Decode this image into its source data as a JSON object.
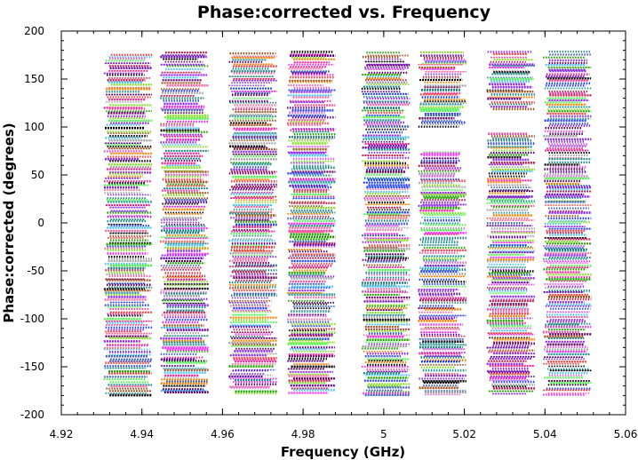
{
  "chart_data": {
    "type": "scatter",
    "title": "Phase:corrected vs. Frequency",
    "xlabel": "Frequency (GHz)",
    "ylabel": "Phase:corrected (degrees)",
    "xlim": [
      4.92,
      5.06
    ],
    "ylim": [
      -200,
      200
    ],
    "x_ticks": [
      4.92,
      4.94,
      4.96,
      4.98,
      5.0,
      5.02,
      5.04,
      5.06
    ],
    "x_tick_labels": [
      "4.92",
      "4.94",
      "4.96",
      "4.98",
      "5",
      "5.02",
      "5.04",
      "5.06"
    ],
    "y_ticks": [
      -200,
      -150,
      -100,
      -50,
      0,
      50,
      100,
      150,
      200
    ],
    "y_tick_labels": [
      "-200",
      "-150",
      "-100",
      "-50",
      "0",
      "50",
      "100",
      "150",
      "200"
    ],
    "grid": false,
    "legend": "none",
    "spectral_windows": [
      {
        "x_start": 4.9305,
        "x_end": 4.9425,
        "phase_min": -180,
        "phase_max": 175
      },
      {
        "x_start": 4.9445,
        "x_end": 4.9565,
        "phase_min": -180,
        "phase_max": 178
      },
      {
        "x_start": 4.9615,
        "x_end": 4.9735,
        "phase_min": -180,
        "phase_max": 177
      },
      {
        "x_start": 4.976,
        "x_end": 4.988,
        "phase_min": -178,
        "phase_max": 178
      },
      {
        "x_start": 4.9945,
        "x_end": 5.0065,
        "phase_min": -180,
        "phase_max": 178
      },
      {
        "x_start": 5.0085,
        "x_end": 5.0205,
        "phase_min": -180,
        "phase_max": 178,
        "gap": [
          75,
          98
        ]
      },
      {
        "x_start": 5.0255,
        "x_end": 5.0375,
        "phase_min": -180,
        "phase_max": 178,
        "gap": [
          95,
          118
        ]
      },
      {
        "x_start": 5.0395,
        "x_end": 5.0515,
        "phase_min": -180,
        "phase_max": 178
      }
    ],
    "series_colors": [
      "#000000",
      "#2040ff",
      "#ff2090",
      "#ff20ff",
      "#20a000",
      "#ff8000",
      "#9020ff",
      "#a0a0a0",
      "#209090",
      "#8a2be2",
      "#40ff40",
      "#c02050",
      "#e060e0",
      "#4060c0",
      "#ff4040",
      "#80e020",
      "#208080",
      "#a05020",
      "#6000a0",
      "#40c0ff",
      "#ff60a0",
      "#600060"
    ]
  }
}
